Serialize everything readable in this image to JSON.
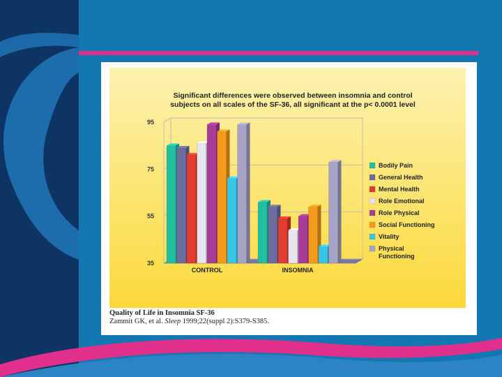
{
  "slide": {
    "colors": {
      "background": "#1378b2",
      "dark_panel": "#0d3463",
      "pink_line": "#e0308c"
    }
  },
  "figure": {
    "caption_title": "Quality of Life in Insomnia SF-36",
    "caption_citation_pre": "Zammit GK, et al.",
    "caption_citation_journal": "Sleep",
    "caption_citation_post": "1999;22(suppl 2):S379-S385."
  },
  "chart_data": {
    "type": "bar",
    "title": "Significant differences were observed between insomnia and control subjects on all scales of the SF-36, all significant at the p< 0.0001 level",
    "title_lines": [
      "Significant differences were observed between insomnia and control",
      "subjects on all scales of the SF-36, all significant at the p< 0.0001 level"
    ],
    "categories": [
      "CONTROL",
      "INSOMNIA"
    ],
    "xlabel": "",
    "ylabel": "",
    "ylim": [
      35,
      95
    ],
    "yticks": [
      35,
      55,
      75,
      95
    ],
    "grid": true,
    "legend_position": "right",
    "series": [
      {
        "name": "Bodily Pain",
        "color": "#1fbfa0",
        "values": [
          85,
          61
        ]
      },
      {
        "name": "General Health",
        "color": "#6e6c9c",
        "values": [
          84,
          59
        ]
      },
      {
        "name": "Mental Health",
        "color": "#e23b2f",
        "values": [
          81,
          54
        ]
      },
      {
        "name": "Role Emotional",
        "color": "#e8e4ee",
        "values": [
          86,
          49
        ]
      },
      {
        "name": "Role Physical",
        "color": "#a83c98",
        "values": [
          94,
          55
        ]
      },
      {
        "name": "Social Functioning",
        "color": "#f49b1d",
        "values": [
          91,
          59
        ]
      },
      {
        "name": "Vitality",
        "color": "#38c4e6",
        "values": [
          71,
          42
        ]
      },
      {
        "name": "Physical Functioning",
        "color": "#a7a3c6",
        "values": [
          94,
          78
        ]
      }
    ]
  }
}
